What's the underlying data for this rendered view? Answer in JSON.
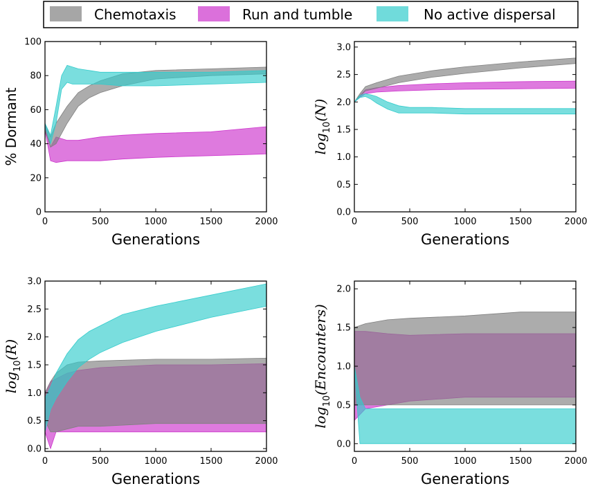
{
  "legend": [
    {
      "label": "Chemotaxis",
      "color": "#808080"
    },
    {
      "label": "Run and tumble",
      "color": "#cc33cc"
    },
    {
      "label": "No active dispersal",
      "color": "#33cccc"
    }
  ],
  "chart_data": [
    {
      "type": "area",
      "xlabel": "Generations",
      "ylabel": "% Dormant",
      "xlim": [
        0,
        2000
      ],
      "ylim": [
        0,
        100
      ],
      "xticks": [
        0,
        500,
        1000,
        1500,
        2000
      ],
      "yticks": [
        0,
        20,
        40,
        60,
        80,
        100
      ],
      "series": [
        {
          "name": "Chemotaxis",
          "x": [
            0,
            50,
            100,
            200,
            300,
            400,
            500,
            700,
            1000,
            1500,
            2000
          ],
          "lower": [
            48,
            38,
            40,
            52,
            62,
            67,
            70,
            74,
            78,
            80,
            81
          ],
          "upper": [
            52,
            44,
            52,
            62,
            70,
            74,
            77,
            81,
            83,
            84,
            85
          ]
        },
        {
          "name": "Run and tumble",
          "x": [
            0,
            50,
            100,
            200,
            300,
            500,
            700,
            1000,
            1500,
            2000
          ],
          "lower": [
            48,
            30,
            29,
            30,
            30,
            30,
            31,
            32,
            33,
            34
          ],
          "upper": [
            52,
            38,
            44,
            42,
            42,
            44,
            45,
            46,
            47,
            50
          ]
        },
        {
          "name": "No active dispersal",
          "x": [
            0,
            50,
            100,
            150,
            200,
            250,
            300,
            400,
            500,
            700,
            1000,
            1500,
            2000
          ],
          "lower": [
            50,
            40,
            52,
            72,
            76,
            75,
            75,
            75,
            75,
            74,
            74,
            75,
            76
          ],
          "upper": [
            52,
            45,
            62,
            80,
            86,
            85,
            84,
            83,
            82,
            82,
            82,
            82,
            83
          ]
        }
      ]
    },
    {
      "type": "area",
      "xlabel": "Generations",
      "ylabel": "log10(N)",
      "xlim": [
        0,
        2000
      ],
      "ylim": [
        0,
        3.1
      ],
      "xticks": [
        0,
        500,
        1000,
        1500,
        2000
      ],
      "yticks": [
        0.0,
        0.5,
        1.0,
        1.5,
        2.0,
        2.5,
        3.0
      ],
      "series": [
        {
          "name": "Chemotaxis",
          "x": [
            0,
            50,
            100,
            200,
            400,
            700,
            1000,
            1500,
            2000
          ],
          "lower": [
            2.0,
            2.1,
            2.2,
            2.25,
            2.35,
            2.45,
            2.52,
            2.62,
            2.7
          ],
          "upper": [
            2.0,
            2.15,
            2.28,
            2.35,
            2.47,
            2.57,
            2.64,
            2.73,
            2.8
          ]
        },
        {
          "name": "Run and tumble",
          "x": [
            0,
            50,
            100,
            200,
            400,
            700,
            1000,
            1500,
            2000
          ],
          "lower": [
            2.0,
            2.08,
            2.15,
            2.18,
            2.2,
            2.22,
            2.23,
            2.24,
            2.25
          ],
          "upper": [
            2.0,
            2.12,
            2.22,
            2.26,
            2.3,
            2.33,
            2.35,
            2.37,
            2.38
          ]
        },
        {
          "name": "No active dispersal",
          "x": [
            0,
            50,
            100,
            150,
            200,
            300,
            400,
            500,
            700,
            1000,
            1500,
            2000
          ],
          "lower": [
            2.0,
            2.08,
            2.1,
            2.05,
            1.98,
            1.87,
            1.8,
            1.8,
            1.8,
            1.78,
            1.78,
            1.78
          ],
          "upper": [
            2.0,
            2.12,
            2.15,
            2.13,
            2.1,
            2.0,
            1.93,
            1.9,
            1.9,
            1.88,
            1.88,
            1.88
          ]
        }
      ]
    },
    {
      "type": "area",
      "xlabel": "Generations",
      "ylabel": "log10(R)",
      "xlim": [
        0,
        2000
      ],
      "ylim": [
        -0.05,
        3.0
      ],
      "xticks": [
        0,
        500,
        1000,
        1500,
        2000
      ],
      "yticks": [
        0.0,
        0.5,
        1.0,
        1.5,
        2.0,
        2.5,
        3.0
      ],
      "series": [
        {
          "name": "Chemotaxis",
          "x": [
            0,
            50,
            100,
            200,
            300,
            500,
            1000,
            1500,
            2000
          ],
          "lower": [
            0.5,
            0.3,
            0.3,
            0.35,
            0.4,
            0.4,
            0.45,
            0.45,
            0.45
          ],
          "upper": [
            1.0,
            1.2,
            1.35,
            1.5,
            1.55,
            1.57,
            1.6,
            1.6,
            1.62
          ]
        },
        {
          "name": "Run and tumble",
          "x": [
            0,
            50,
            100,
            200,
            300,
            500,
            1000,
            1500,
            2000
          ],
          "lower": [
            0.3,
            0.0,
            0.3,
            0.3,
            0.3,
            0.3,
            0.3,
            0.3,
            0.3
          ],
          "upper": [
            1.0,
            1.2,
            1.25,
            1.35,
            1.4,
            1.45,
            1.5,
            1.5,
            1.52
          ]
        },
        {
          "name": "No active dispersal",
          "x": [
            0,
            50,
            100,
            200,
            300,
            400,
            500,
            700,
            1000,
            1500,
            2000
          ],
          "lower": [
            0.3,
            0.7,
            0.9,
            1.2,
            1.45,
            1.6,
            1.72,
            1.9,
            2.1,
            2.35,
            2.55
          ],
          "upper": [
            0.9,
            1.1,
            1.35,
            1.7,
            1.95,
            2.1,
            2.2,
            2.4,
            2.55,
            2.75,
            2.95
          ]
        }
      ]
    },
    {
      "type": "area",
      "xlabel": "Generations",
      "ylabel": "log10(Encounters)",
      "xlim": [
        0,
        2000
      ],
      "ylim": [
        -0.1,
        2.1
      ],
      "xticks": [
        0,
        500,
        1000,
        1500,
        2000
      ],
      "yticks": [
        0.0,
        0.5,
        1.0,
        1.5,
        2.0
      ],
      "series": [
        {
          "name": "Chemotaxis",
          "x": [
            0,
            100,
            300,
            500,
            1000,
            1500,
            2000
          ],
          "lower": [
            0.5,
            0.5,
            0.5,
            0.5,
            0.5,
            0.5,
            0.5
          ],
          "upper": [
            1.5,
            1.55,
            1.6,
            1.62,
            1.65,
            1.7,
            1.7
          ]
        },
        {
          "name": "Run and tumble",
          "x": [
            0,
            100,
            300,
            500,
            1000,
            1500,
            2000
          ],
          "lower": [
            0.3,
            0.45,
            0.5,
            0.55,
            0.6,
            0.6,
            0.6
          ],
          "upper": [
            1.45,
            1.45,
            1.42,
            1.4,
            1.42,
            1.42,
            1.42
          ]
        },
        {
          "name": "No active dispersal",
          "x": [
            0,
            50,
            100,
            150,
            500,
            1000,
            1500,
            2000
          ],
          "lower": [
            1.0,
            0.0,
            0.0,
            0.0,
            0.0,
            0.0,
            0.0,
            0.0
          ],
          "upper": [
            1.0,
            0.6,
            0.45,
            0.45,
            0.45,
            0.45,
            0.45,
            0.45
          ]
        }
      ]
    }
  ]
}
